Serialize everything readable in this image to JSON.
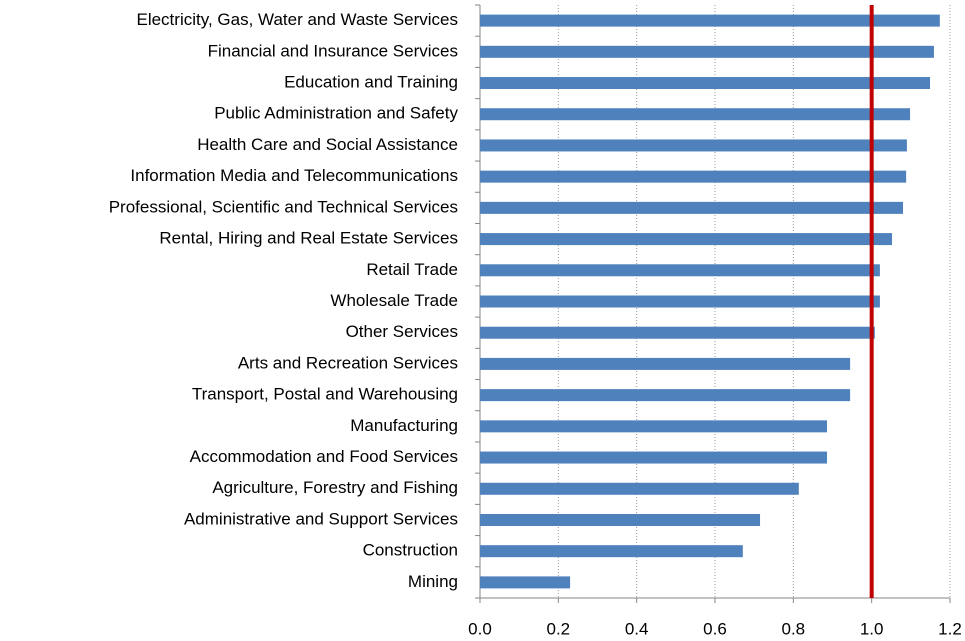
{
  "chart_data": {
    "type": "barh",
    "categories": [
      "Electricity, Gas, Water and Waste Services",
      "Financial and Insurance Services",
      "Education and Training",
      "Public Administration and Safety",
      "Health Care and Social Assistance",
      "Information Media and Telecommunications",
      "Professional, Scientific and Technical Services",
      "Rental, Hiring and Real Estate Services",
      "Retail Trade",
      "Wholesale Trade",
      "Other Services",
      "Arts and Recreation Services",
      "Transport, Postal and Warehousing",
      "Manufacturing",
      "Accommodation and Food Services",
      "Agriculture, Forestry and Fishing",
      "Administrative and Support Services",
      "Construction",
      "Mining"
    ],
    "values": [
      1.174,
      1.159,
      1.149,
      1.098,
      1.09,
      1.088,
      1.08,
      1.052,
      1.021,
      1.021,
      1.008,
      0.945,
      0.945,
      0.886,
      0.886,
      0.814,
      0.715,
      0.671,
      0.23
    ],
    "color": "#4f81bd",
    "xlim": [
      0,
      1.2
    ],
    "xticks": [
      {
        "value": 0,
        "label": "0.0"
      },
      0.2,
      0.4,
      0.6,
      0.8,
      {
        "value": 1,
        "label": "1.0"
      },
      1.2
    ],
    "grid": true,
    "reference_line": {
      "value": 1,
      "color": "#c00000"
    }
  }
}
